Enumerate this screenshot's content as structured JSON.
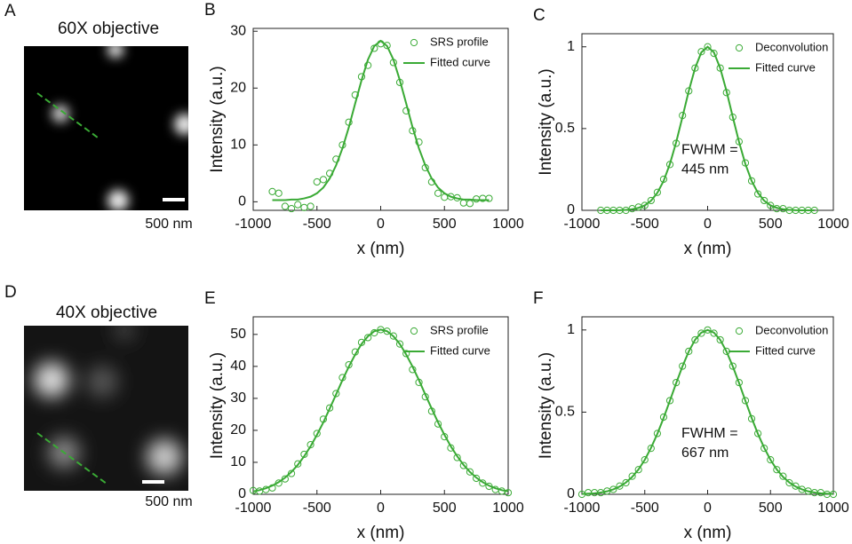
{
  "images": [
    {
      "letter": "A",
      "title": "60X objective",
      "scale_bar": "500 nm"
    },
    {
      "letter": "D",
      "title": "40X objective",
      "scale_bar": "500 nm"
    }
  ],
  "chart_data": [
    {
      "type": "line",
      "letter": "B",
      "xlabel": "x (nm)",
      "ylabel": "Intensity (a.u.)",
      "legend": "upper right",
      "x": [
        -850,
        -800,
        -750,
        -700,
        -650,
        -600,
        -550,
        -500,
        -450,
        -400,
        -350,
        -300,
        -250,
        -200,
        -150,
        -100,
        -50,
        0,
        50,
        100,
        150,
        200,
        250,
        300,
        350,
        400,
        450,
        500,
        550,
        600,
        650,
        700,
        750,
        800,
        850
      ],
      "xlim": [
        -1000,
        1000
      ],
      "ylim": [
        -1.5,
        30.5
      ],
      "xticks": [
        -1000,
        -500,
        0,
        500,
        1000
      ],
      "yticks": [
        0,
        10,
        20,
        30
      ],
      "series": [
        {
          "name": "SRS profile",
          "color": "#3aaa35",
          "style": "markers",
          "values": [
            1.8,
            1.5,
            -0.8,
            -1.2,
            -0.5,
            -1.0,
            -0.8,
            3.5,
            3.9,
            5.0,
            7.5,
            10.0,
            14.0,
            18.8,
            22.0,
            24.0,
            27.0,
            27.8,
            27.5,
            24.5,
            21.0,
            16.0,
            12.5,
            10.5,
            6.0,
            3.5,
            1.5,
            0.8,
            0.9,
            0.7,
            -0.2,
            -0.3,
            0.5,
            0.6,
            0.6
          ]
        },
        {
          "name": "Fitted curve",
          "color": "#3aaa35",
          "style": "line",
          "values": [
            0.3,
            0.3,
            0.3,
            0.4,
            0.4,
            0.6,
            0.9,
            1.5,
            2.5,
            4.1,
            6.4,
            9.4,
            13.1,
            17.3,
            21.4,
            25.0,
            27.4,
            28.3,
            27.4,
            25.0,
            21.4,
            17.3,
            13.1,
            9.4,
            6.4,
            4.1,
            2.5,
            1.5,
            0.9,
            0.6,
            0.4,
            0.4,
            0.3,
            0.3,
            0.3
          ]
        }
      ]
    },
    {
      "type": "line",
      "letter": "C",
      "xlabel": "x (nm)",
      "ylabel": "Intensity (a.u.)",
      "legend": "upper right",
      "annotation": [
        "FWHM =",
        "445 nm"
      ],
      "x": [
        -850,
        -800,
        -750,
        -700,
        -650,
        -600,
        -550,
        -500,
        -450,
        -400,
        -350,
        -300,
        -250,
        -200,
        -150,
        -100,
        -50,
        0,
        50,
        100,
        150,
        200,
        250,
        300,
        350,
        400,
        450,
        500,
        550,
        600,
        650,
        700,
        750,
        800,
        850
      ],
      "xlim": [
        -1000,
        1000
      ],
      "ylim": [
        0,
        1.08
      ],
      "xticks": [
        -1000,
        -500,
        0,
        500,
        1000
      ],
      "yticks": [
        0,
        0.5,
        1
      ],
      "series": [
        {
          "name": "Deconvolution",
          "color": "#3aaa35",
          "style": "markers",
          "values": [
            0,
            0,
            0,
            0,
            0,
            0.01,
            0.02,
            0.03,
            0.06,
            0.11,
            0.19,
            0.28,
            0.41,
            0.58,
            0.73,
            0.87,
            0.97,
            1.0,
            0.96,
            0.87,
            0.72,
            0.57,
            0.42,
            0.29,
            0.18,
            0.1,
            0.06,
            0.03,
            0.01,
            0.01,
            0,
            0,
            0,
            0,
            0
          ]
        },
        {
          "name": "Fitted curve",
          "color": "#3aaa35",
          "style": "line",
          "values": [
            0,
            0,
            0,
            0.001,
            0.003,
            0.007,
            0.015,
            0.03,
            0.059,
            0.107,
            0.18,
            0.284,
            0.417,
            0.571,
            0.73,
            0.869,
            0.966,
            1,
            0.966,
            0.869,
            0.73,
            0.571,
            0.417,
            0.284,
            0.18,
            0.107,
            0.059,
            0.03,
            0.015,
            0.007,
            0.003,
            0.001,
            0,
            0,
            0
          ]
        }
      ]
    },
    {
      "type": "line",
      "letter": "E",
      "xlabel": "x (nm)",
      "ylabel": "Intensity (a.u.)",
      "legend": "upper right",
      "x": [
        -1000,
        -950,
        -900,
        -850,
        -800,
        -750,
        -700,
        -650,
        -600,
        -550,
        -500,
        -450,
        -400,
        -350,
        -300,
        -250,
        -200,
        -150,
        -100,
        -50,
        0,
        50,
        100,
        150,
        200,
        250,
        300,
        350,
        400,
        450,
        500,
        550,
        600,
        650,
        700,
        750,
        800,
        850,
        900,
        950,
        1000
      ],
      "xlim": [
        -1000,
        1000
      ],
      "ylim": [
        0,
        55.5
      ],
      "xticks": [
        -1000,
        -500,
        0,
        500,
        1000
      ],
      "yticks": [
        0,
        10,
        20,
        30,
        40,
        50
      ],
      "series": [
        {
          "name": "SRS profile",
          "color": "#3aaa35",
          "style": "markers",
          "values": [
            1.2,
            1.0,
            1.5,
            2.0,
            3.5,
            4.8,
            6.5,
            9.5,
            12.5,
            15.5,
            19.0,
            23.5,
            27.0,
            31.5,
            36.5,
            40.5,
            44.5,
            47.5,
            49.0,
            50.5,
            51.5,
            51.0,
            49.5,
            47.0,
            44.0,
            39.0,
            35.0,
            30.5,
            26.0,
            22.0,
            18.0,
            14.5,
            11.5,
            9.0,
            7.0,
            5.0,
            3.5,
            2.5,
            1.5,
            1.0,
            0.5
          ]
        },
        {
          "name": "Fitted curve",
          "color": "#3aaa35",
          "style": "line",
          "values": [
            0.9,
            1.3,
            1.9,
            2.7,
            3.8,
            5.2,
            7.0,
            9.2,
            11.9,
            15.0,
            18.6,
            22.5,
            26.8,
            31.2,
            35.7,
            39.9,
            43.7,
            47.0,
            49.4,
            51.0,
            51.5,
            51.0,
            49.4,
            47.0,
            43.7,
            39.9,
            35.7,
            31.2,
            26.8,
            22.5,
            18.6,
            15.0,
            11.9,
            9.2,
            7.0,
            5.2,
            3.8,
            2.7,
            1.9,
            1.3,
            0.9
          ]
        }
      ]
    },
    {
      "type": "line",
      "letter": "F",
      "xlabel": "x (nm)",
      "ylabel": "Intensity (a.u.)",
      "legend": "upper right",
      "annotation": [
        "FWHM =",
        "667 nm"
      ],
      "x": [
        -1000,
        -950,
        -900,
        -850,
        -800,
        -750,
        -700,
        -650,
        -600,
        -550,
        -500,
        -450,
        -400,
        -350,
        -300,
        -250,
        -200,
        -150,
        -100,
        -50,
        0,
        50,
        100,
        150,
        200,
        250,
        300,
        350,
        400,
        450,
        500,
        550,
        600,
        650,
        700,
        750,
        800,
        850,
        900,
        950,
        1000
      ],
      "xlim": [
        -1000,
        1000
      ],
      "ylim": [
        0,
        1.08
      ],
      "xticks": [
        -1000,
        -500,
        0,
        500,
        1000
      ],
      "yticks": [
        0,
        0.5,
        1
      ],
      "series": [
        {
          "name": "Deconvolution",
          "color": "#3aaa35",
          "style": "markers",
          "values": [
            0,
            0.01,
            0.01,
            0.01,
            0.02,
            0.03,
            0.05,
            0.07,
            0.11,
            0.15,
            0.21,
            0.28,
            0.37,
            0.47,
            0.57,
            0.68,
            0.78,
            0.87,
            0.94,
            0.98,
            1,
            0.98,
            0.94,
            0.87,
            0.78,
            0.68,
            0.57,
            0.46,
            0.37,
            0.28,
            0.21,
            0.15,
            0.11,
            0.07,
            0.05,
            0.03,
            0.02,
            0.01,
            0.01,
            0,
            0
          ]
        },
        {
          "name": "Fitted curve",
          "color": "#3aaa35",
          "style": "line",
          "values": [
            0.002,
            0.004,
            0.006,
            0.011,
            0.018,
            0.03,
            0.047,
            0.072,
            0.106,
            0.151,
            0.21,
            0.283,
            0.368,
            0.465,
            0.57,
            0.677,
            0.779,
            0.869,
            0.94,
            0.984,
            1,
            0.984,
            0.94,
            0.869,
            0.779,
            0.677,
            0.57,
            0.465,
            0.368,
            0.283,
            0.21,
            0.151,
            0.106,
            0.072,
            0.047,
            0.03,
            0.018,
            0.011,
            0.006,
            0.004,
            0.002
          ]
        }
      ]
    }
  ]
}
